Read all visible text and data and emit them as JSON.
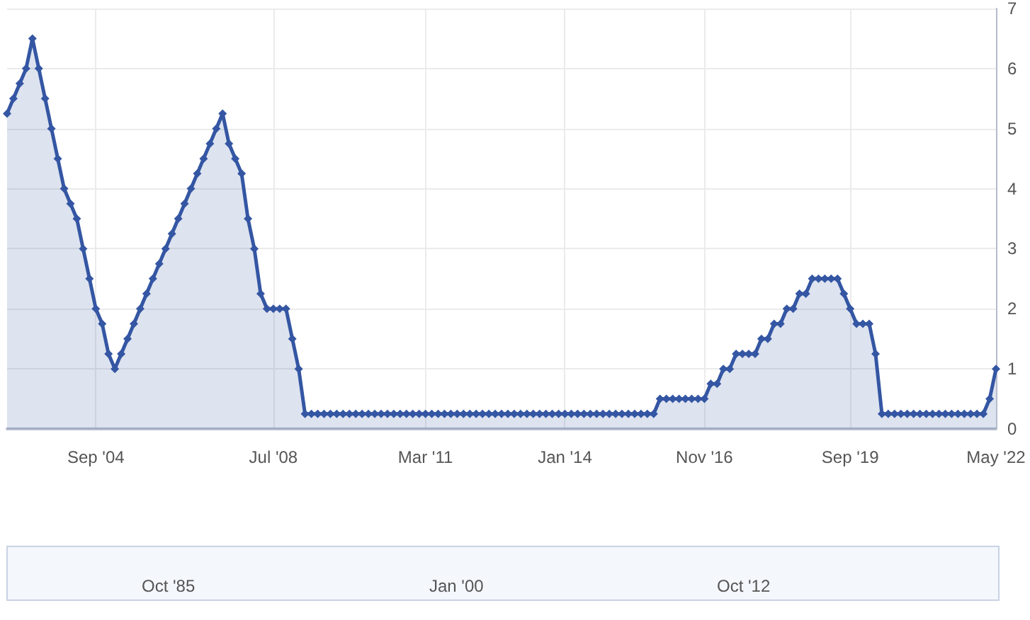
{
  "chart_data": {
    "type": "area",
    "categories": [
      null,
      null,
      null,
      null,
      null,
      null,
      null,
      null,
      null,
      null,
      null,
      null,
      null,
      null,
      "Sep '04",
      null,
      null,
      null,
      null,
      null,
      null,
      null,
      null,
      null,
      null,
      null,
      null,
      null,
      null,
      null,
      null,
      null,
      null,
      null,
      null,
      null,
      null,
      null,
      null,
      null,
      null,
      null,
      "Jul '08",
      null,
      null,
      null,
      null,
      null,
      null,
      null,
      null,
      null,
      null,
      null,
      null,
      null,
      null,
      null,
      null,
      null,
      null,
      null,
      null,
      null,
      null,
      null,
      "Mar '11",
      null,
      null,
      null,
      null,
      null,
      null,
      null,
      null,
      null,
      null,
      null,
      null,
      null,
      null,
      null,
      null,
      null,
      null,
      null,
      null,
      null,
      "Jan '14",
      null,
      null,
      null,
      null,
      null,
      null,
      null,
      null,
      null,
      null,
      null,
      null,
      null,
      null,
      null,
      null,
      null,
      null,
      null,
      null,
      null,
      "Nov '16",
      null,
      null,
      null,
      null,
      null,
      null,
      null,
      null,
      null,
      null,
      null,
      null,
      null,
      null,
      null,
      null,
      null,
      null,
      null,
      null,
      null,
      null,
      "Sep '19",
      null,
      null,
      null,
      null,
      null,
      null,
      null,
      null,
      null,
      null,
      null,
      null,
      null,
      null,
      null,
      null,
      null,
      null,
      null,
      null,
      null,
      null,
      "May '22"
    ],
    "series": [
      {
        "color": "#3456a3",
        "values": [
          5.25,
          5.5,
          5.75,
          6.0,
          6.5,
          6.0,
          5.5,
          5.0,
          4.5,
          4.0,
          3.75,
          3.5,
          3.0,
          2.5,
          2.0,
          1.75,
          1.25,
          1.0,
          1.25,
          1.5,
          1.75,
          2.0,
          2.25,
          2.5,
          2.75,
          3.0,
          3.25,
          3.5,
          3.75,
          4.0,
          4.25,
          4.5,
          4.75,
          5.0,
          5.25,
          4.75,
          4.5,
          4.25,
          3.5,
          3.0,
          2.25,
          2.0,
          2.0,
          2.0,
          2.0,
          1.5,
          1.0,
          0.25,
          0.25,
          0.25,
          0.25,
          0.25,
          0.25,
          0.25,
          0.25,
          0.25,
          0.25,
          0.25,
          0.25,
          0.25,
          0.25,
          0.25,
          0.25,
          0.25,
          0.25,
          0.25,
          0.25,
          0.25,
          0.25,
          0.25,
          0.25,
          0.25,
          0.25,
          0.25,
          0.25,
          0.25,
          0.25,
          0.25,
          0.25,
          0.25,
          0.25,
          0.25,
          0.25,
          0.25,
          0.25,
          0.25,
          0.25,
          0.25,
          0.25,
          0.25,
          0.25,
          0.25,
          0.25,
          0.25,
          0.25,
          0.25,
          0.25,
          0.25,
          0.25,
          0.25,
          0.25,
          0.25,
          0.25,
          0.5,
          0.5,
          0.5,
          0.5,
          0.5,
          0.5,
          0.5,
          0.5,
          0.75,
          0.75,
          1.0,
          1.0,
          1.25,
          1.25,
          1.25,
          1.25,
          1.5,
          1.5,
          1.75,
          1.75,
          2.0,
          2.0,
          2.25,
          2.25,
          2.5,
          2.5,
          2.5,
          2.5,
          2.5,
          2.25,
          2.0,
          1.75,
          1.75,
          1.75,
          1.25,
          0.25,
          0.25,
          0.25,
          0.25,
          0.25,
          0.25,
          0.25,
          0.25,
          0.25,
          0.25,
          0.25,
          0.25,
          0.25,
          0.25,
          0.25,
          0.25,
          0.25,
          0.5,
          1.0
        ]
      }
    ],
    "ylim": [
      0,
      7
    ],
    "yticks": [
      0,
      1,
      2,
      3,
      4,
      5,
      6,
      7
    ],
    "grid": true,
    "marker": "diamond",
    "annotations": [
      "Oct '85",
      "Jan '00",
      "Oct '12"
    ]
  }
}
